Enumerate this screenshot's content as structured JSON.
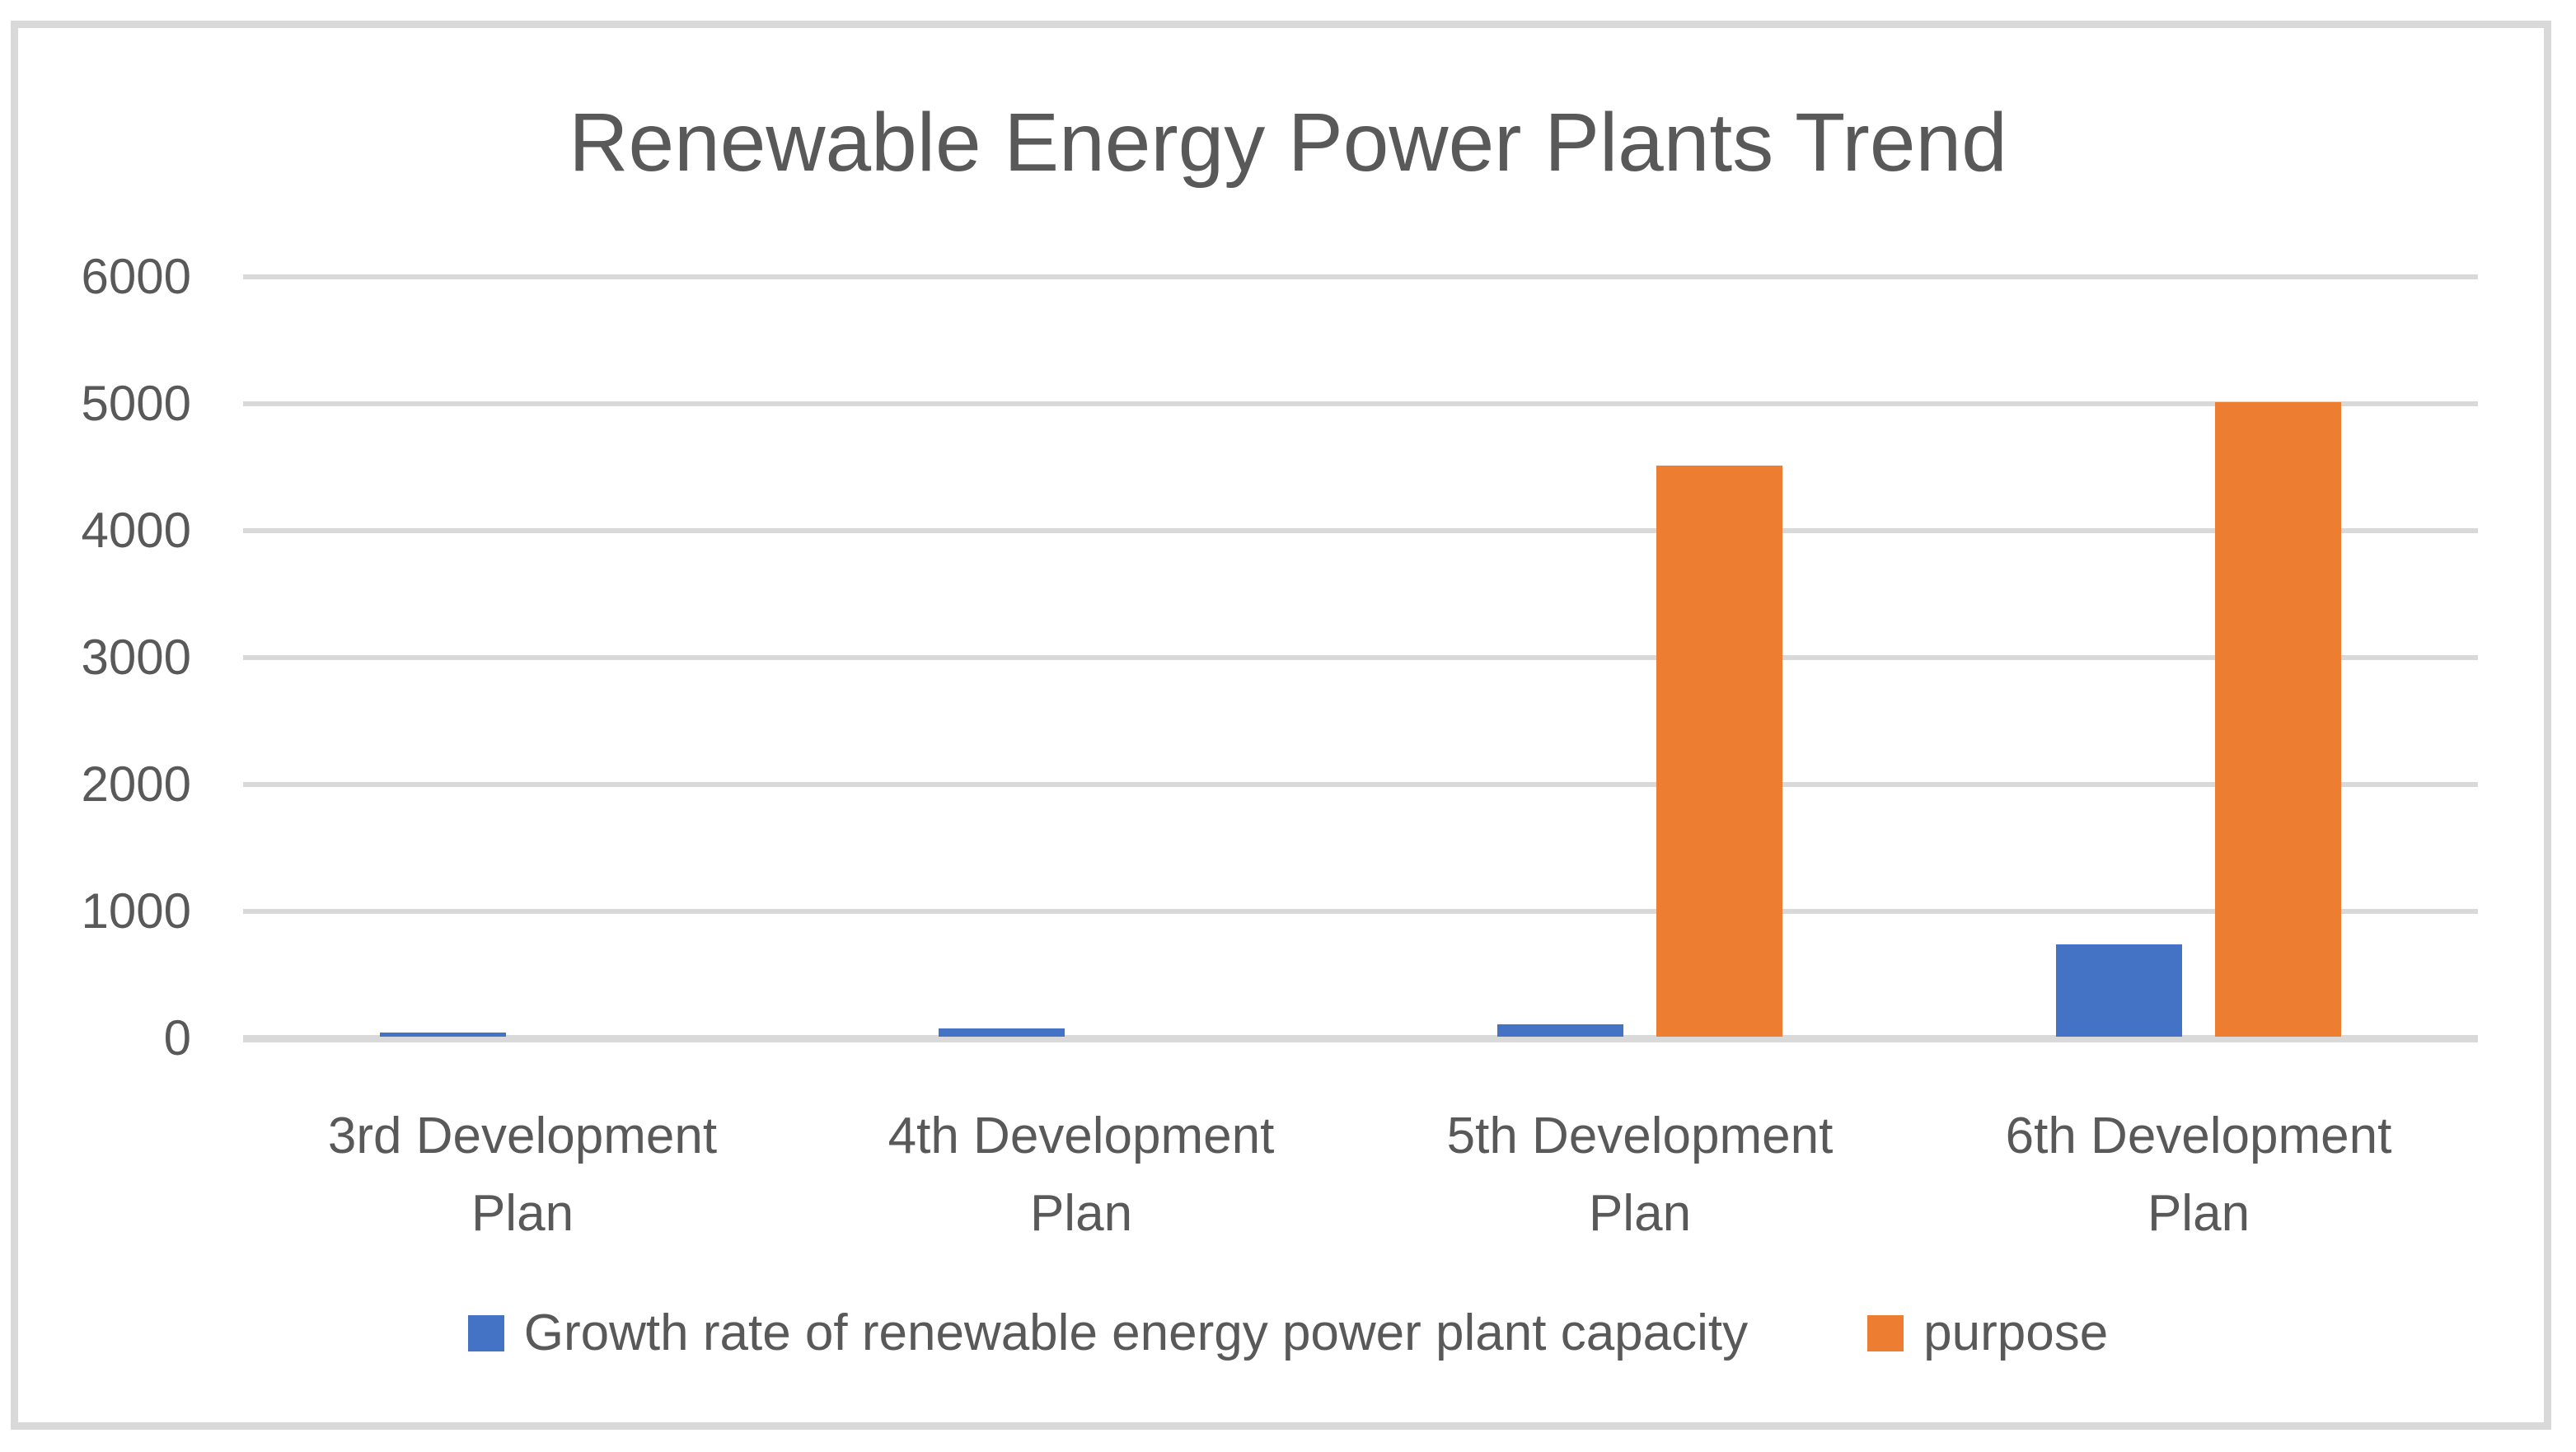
{
  "window": {
    "background_color": "#ffffff",
    "frame_border_color": "#d9d9d9"
  },
  "chart_data": {
    "type": "bar",
    "title": "Renewable Energy Power Plants Trend",
    "categories": [
      "3rd Development Plan",
      "4th Development Plan",
      "5th Development Plan",
      "6th Development Plan"
    ],
    "series": [
      {
        "name": "Growth rate of renewable energy power plant capacity",
        "color": "#4472C4",
        "values": [
          30,
          65,
          100,
          730
        ]
      },
      {
        "name": "purpose",
        "color": "#ED7D31",
        "values": [
          0,
          0,
          4500,
          5000
        ]
      }
    ],
    "xlabel": "",
    "ylabel": "",
    "ylim": [
      0,
      6000
    ],
    "y_ticks": [
      0,
      1000,
      2000,
      3000,
      4000,
      5000,
      6000
    ],
    "grid": "horizontal",
    "gridline_color": "#d9d9d9",
    "axis_line_color": "#d9d9d9",
    "text_color": "#595959",
    "legend_position": "bottom"
  }
}
